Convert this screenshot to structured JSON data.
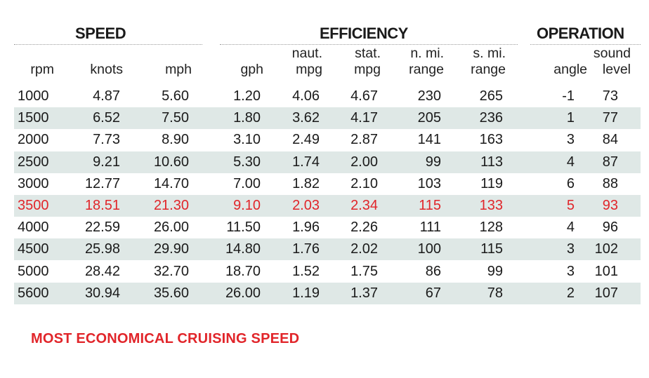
{
  "groups": {
    "speed": "SPEED",
    "efficiency": "EFFICIENCY",
    "operation": "OPERATION"
  },
  "headers": [
    [
      "rpm"
    ],
    [
      "knots"
    ],
    [
      "mph"
    ],
    [
      "gph"
    ],
    [
      "naut.",
      "mpg"
    ],
    [
      "stat.",
      "mpg"
    ],
    [
      "n. mi.",
      "range"
    ],
    [
      "s. mi.",
      "range"
    ],
    [
      "angle"
    ],
    [
      "sound",
      "level"
    ]
  ],
  "rows": [
    [
      "1000",
      "4.87",
      "5.60",
      "1.20",
      "4.06",
      "4.67",
      "230",
      "265",
      "-1",
      "73"
    ],
    [
      "1500",
      "6.52",
      "7.50",
      "1.80",
      "3.62",
      "4.17",
      "205",
      "236",
      "1",
      "77"
    ],
    [
      "2000",
      "7.73",
      "8.90",
      "3.10",
      "2.49",
      "2.87",
      "141",
      "163",
      "3",
      "84"
    ],
    [
      "2500",
      "9.21",
      "10.60",
      "5.30",
      "1.74",
      "2.00",
      "99",
      "113",
      "4",
      "87"
    ],
    [
      "3000",
      "12.77",
      "14.70",
      "7.00",
      "1.82",
      "2.10",
      "103",
      "119",
      "6",
      "88"
    ],
    [
      "3500",
      "18.51",
      "21.30",
      "9.10",
      "2.03",
      "2.34",
      "115",
      "133",
      "5",
      "93"
    ],
    [
      "4000",
      "22.59",
      "26.00",
      "11.50",
      "1.96",
      "2.26",
      "111",
      "128",
      "4",
      "96"
    ],
    [
      "4500",
      "25.98",
      "29.90",
      "14.80",
      "1.76",
      "2.02",
      "100",
      "115",
      "3",
      "102"
    ],
    [
      "5000",
      "28.42",
      "32.70",
      "18.70",
      "1.52",
      "1.75",
      "86",
      "99",
      "3",
      "101"
    ],
    [
      "5600",
      "30.94",
      "35.60",
      "26.00",
      "1.19",
      "1.37",
      "67",
      "78",
      "2",
      "107"
    ]
  ],
  "highlight_row": "3500",
  "highlight_color": "#e1252a",
  "band_color": "#dfe8e6",
  "footnote": "MOST ECONOMICAL CRUISING SPEED"
}
